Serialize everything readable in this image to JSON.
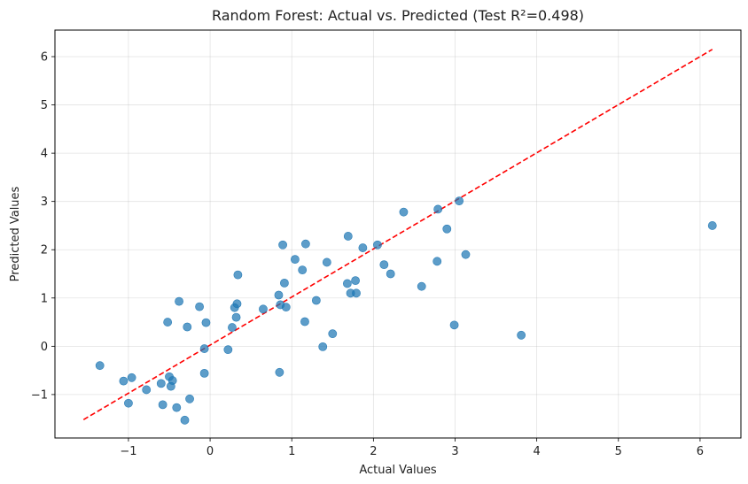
{
  "chart_data": {
    "type": "scatter",
    "title": "Random Forest: Actual vs. Predicted (Test R²=0.498)",
    "xlabel": "Actual Values",
    "ylabel": "Predicted Values",
    "xlim": [
      -1.9,
      6.5
    ],
    "ylim": [
      -1.9,
      6.55
    ],
    "xticks": [
      -1,
      0,
      1,
      2,
      3,
      4,
      5,
      6
    ],
    "yticks": [
      -1,
      0,
      1,
      2,
      3,
      4,
      5,
      6
    ],
    "xtick_labels": [
      "−1",
      "0",
      "1",
      "2",
      "3",
      "4",
      "5",
      "6"
    ],
    "ytick_labels": [
      "−1",
      "0",
      "1",
      "2",
      "3",
      "4",
      "5",
      "6"
    ],
    "grid": true,
    "marker_color": "#1f77b4",
    "reference_line": {
      "x": [
        -1.55,
        6.15
      ],
      "y": [
        -1.52,
        6.15
      ],
      "color": "#ff0000",
      "style": "dashed"
    },
    "points": [
      [
        -1.35,
        -0.4
      ],
      [
        -1.06,
        -0.72
      ],
      [
        -0.96,
        -0.65
      ],
      [
        -1.0,
        -1.18
      ],
      [
        -0.78,
        -0.9
      ],
      [
        -0.6,
        -0.77
      ],
      [
        -0.58,
        -1.21
      ],
      [
        -0.52,
        0.5
      ],
      [
        -0.5,
        -0.63
      ],
      [
        -0.48,
        -0.83
      ],
      [
        -0.46,
        -0.71
      ],
      [
        -0.41,
        -1.27
      ],
      [
        -0.38,
        0.93
      ],
      [
        -0.31,
        -1.53
      ],
      [
        -0.28,
        0.4
      ],
      [
        -0.25,
        -1.09
      ],
      [
        -0.13,
        0.82
      ],
      [
        -0.07,
        -0.56
      ],
      [
        -0.07,
        -0.05
      ],
      [
        -0.05,
        0.49
      ],
      [
        0.22,
        -0.07
      ],
      [
        0.27,
        0.39
      ],
      [
        0.3,
        0.8
      ],
      [
        0.32,
        0.6
      ],
      [
        0.33,
        0.88
      ],
      [
        0.34,
        1.48
      ],
      [
        0.65,
        0.77
      ],
      [
        0.84,
        1.06
      ],
      [
        0.86,
        0.86
      ],
      [
        0.85,
        -0.54
      ],
      [
        0.89,
        2.1
      ],
      [
        0.91,
        1.31
      ],
      [
        0.93,
        0.81
      ],
      [
        1.04,
        1.8
      ],
      [
        1.13,
        1.58
      ],
      [
        1.16,
        0.51
      ],
      [
        1.17,
        2.12
      ],
      [
        1.3,
        0.95
      ],
      [
        1.38,
        -0.01
      ],
      [
        1.43,
        1.74
      ],
      [
        1.5,
        0.26
      ],
      [
        1.68,
        1.3
      ],
      [
        1.69,
        2.28
      ],
      [
        1.72,
        1.1
      ],
      [
        1.78,
        1.36
      ],
      [
        1.79,
        1.1
      ],
      [
        1.87,
        2.04
      ],
      [
        2.05,
        2.1
      ],
      [
        2.13,
        1.69
      ],
      [
        2.21,
        1.5
      ],
      [
        2.37,
        2.78
      ],
      [
        2.59,
        1.24
      ],
      [
        2.79,
        2.84
      ],
      [
        2.78,
        1.76
      ],
      [
        2.9,
        2.43
      ],
      [
        2.99,
        0.44
      ],
      [
        3.05,
        3.01
      ],
      [
        3.13,
        1.9
      ],
      [
        3.81,
        0.23
      ],
      [
        6.15,
        2.5
      ]
    ]
  }
}
